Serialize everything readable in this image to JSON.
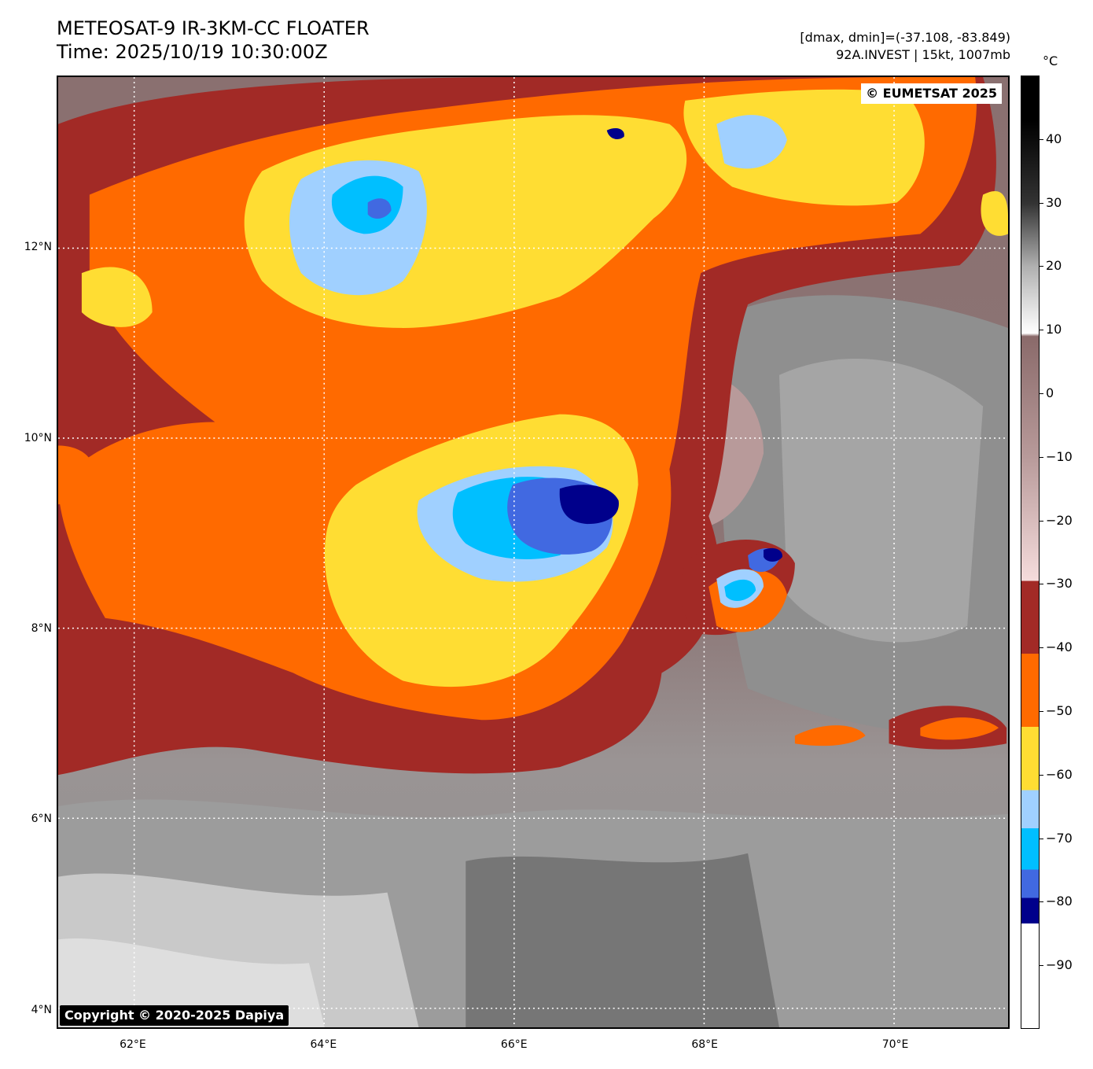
{
  "header": {
    "title_line1": "METEOSAT-9 IR-3KM-CC FLOATER",
    "title_line2": "Time: 2025/10/19 10:30:00Z",
    "info_line1": "[dmax, dmin]=(-37.108, -83.849)",
    "info_line2": "92A.INVEST | 15kt, 1007mb"
  },
  "map": {
    "eumetsat_credit": "© EUMETSAT 2025",
    "copyright": "Copyright © 2020-2025 Dapiya",
    "lon_range": [
      61.2,
      71.2
    ],
    "lat_range": [
      3.8,
      13.8
    ],
    "lat_labels": [
      {
        "value": 12,
        "label": "12°N"
      },
      {
        "value": 10,
        "label": "10°N"
      },
      {
        "value": 8,
        "label": "8°N"
      },
      {
        "value": 6,
        "label": "6°N"
      },
      {
        "value": 4,
        "label": "4°N"
      }
    ],
    "lon_labels": [
      {
        "value": 62,
        "label": "62°E"
      },
      {
        "value": 64,
        "label": "64°E"
      },
      {
        "value": 66,
        "label": "66°E"
      },
      {
        "value": 68,
        "label": "68°E"
      },
      {
        "value": 70,
        "label": "70°E"
      }
    ],
    "grid": true
  },
  "colorbar": {
    "unit": "°C",
    "range": [
      -100,
      50
    ],
    "ticks": [
      {
        "value": 40,
        "label": "40"
      },
      {
        "value": 30,
        "label": "30"
      },
      {
        "value": 20,
        "label": "20"
      },
      {
        "value": 10,
        "label": "10"
      },
      {
        "value": 0,
        "label": "0"
      },
      {
        "value": -10,
        "label": "−10"
      },
      {
        "value": -20,
        "label": "−20"
      },
      {
        "value": -30,
        "label": "−30"
      },
      {
        "value": -40,
        "label": "−40"
      },
      {
        "value": -50,
        "label": "−50"
      },
      {
        "value": -60,
        "label": "−60"
      },
      {
        "value": -70,
        "label": "−70"
      },
      {
        "value": -80,
        "label": "−80"
      },
      {
        "value": -90,
        "label": "−90"
      }
    ],
    "colors": {
      "maroon": "#a22a26",
      "orange": "#ff6a00",
      "yellow": "#ffdd33",
      "light_blue": "#a0d0ff",
      "cyan": "#00bfff",
      "royal_blue": "#4169e1",
      "navy": "#00008b"
    }
  }
}
